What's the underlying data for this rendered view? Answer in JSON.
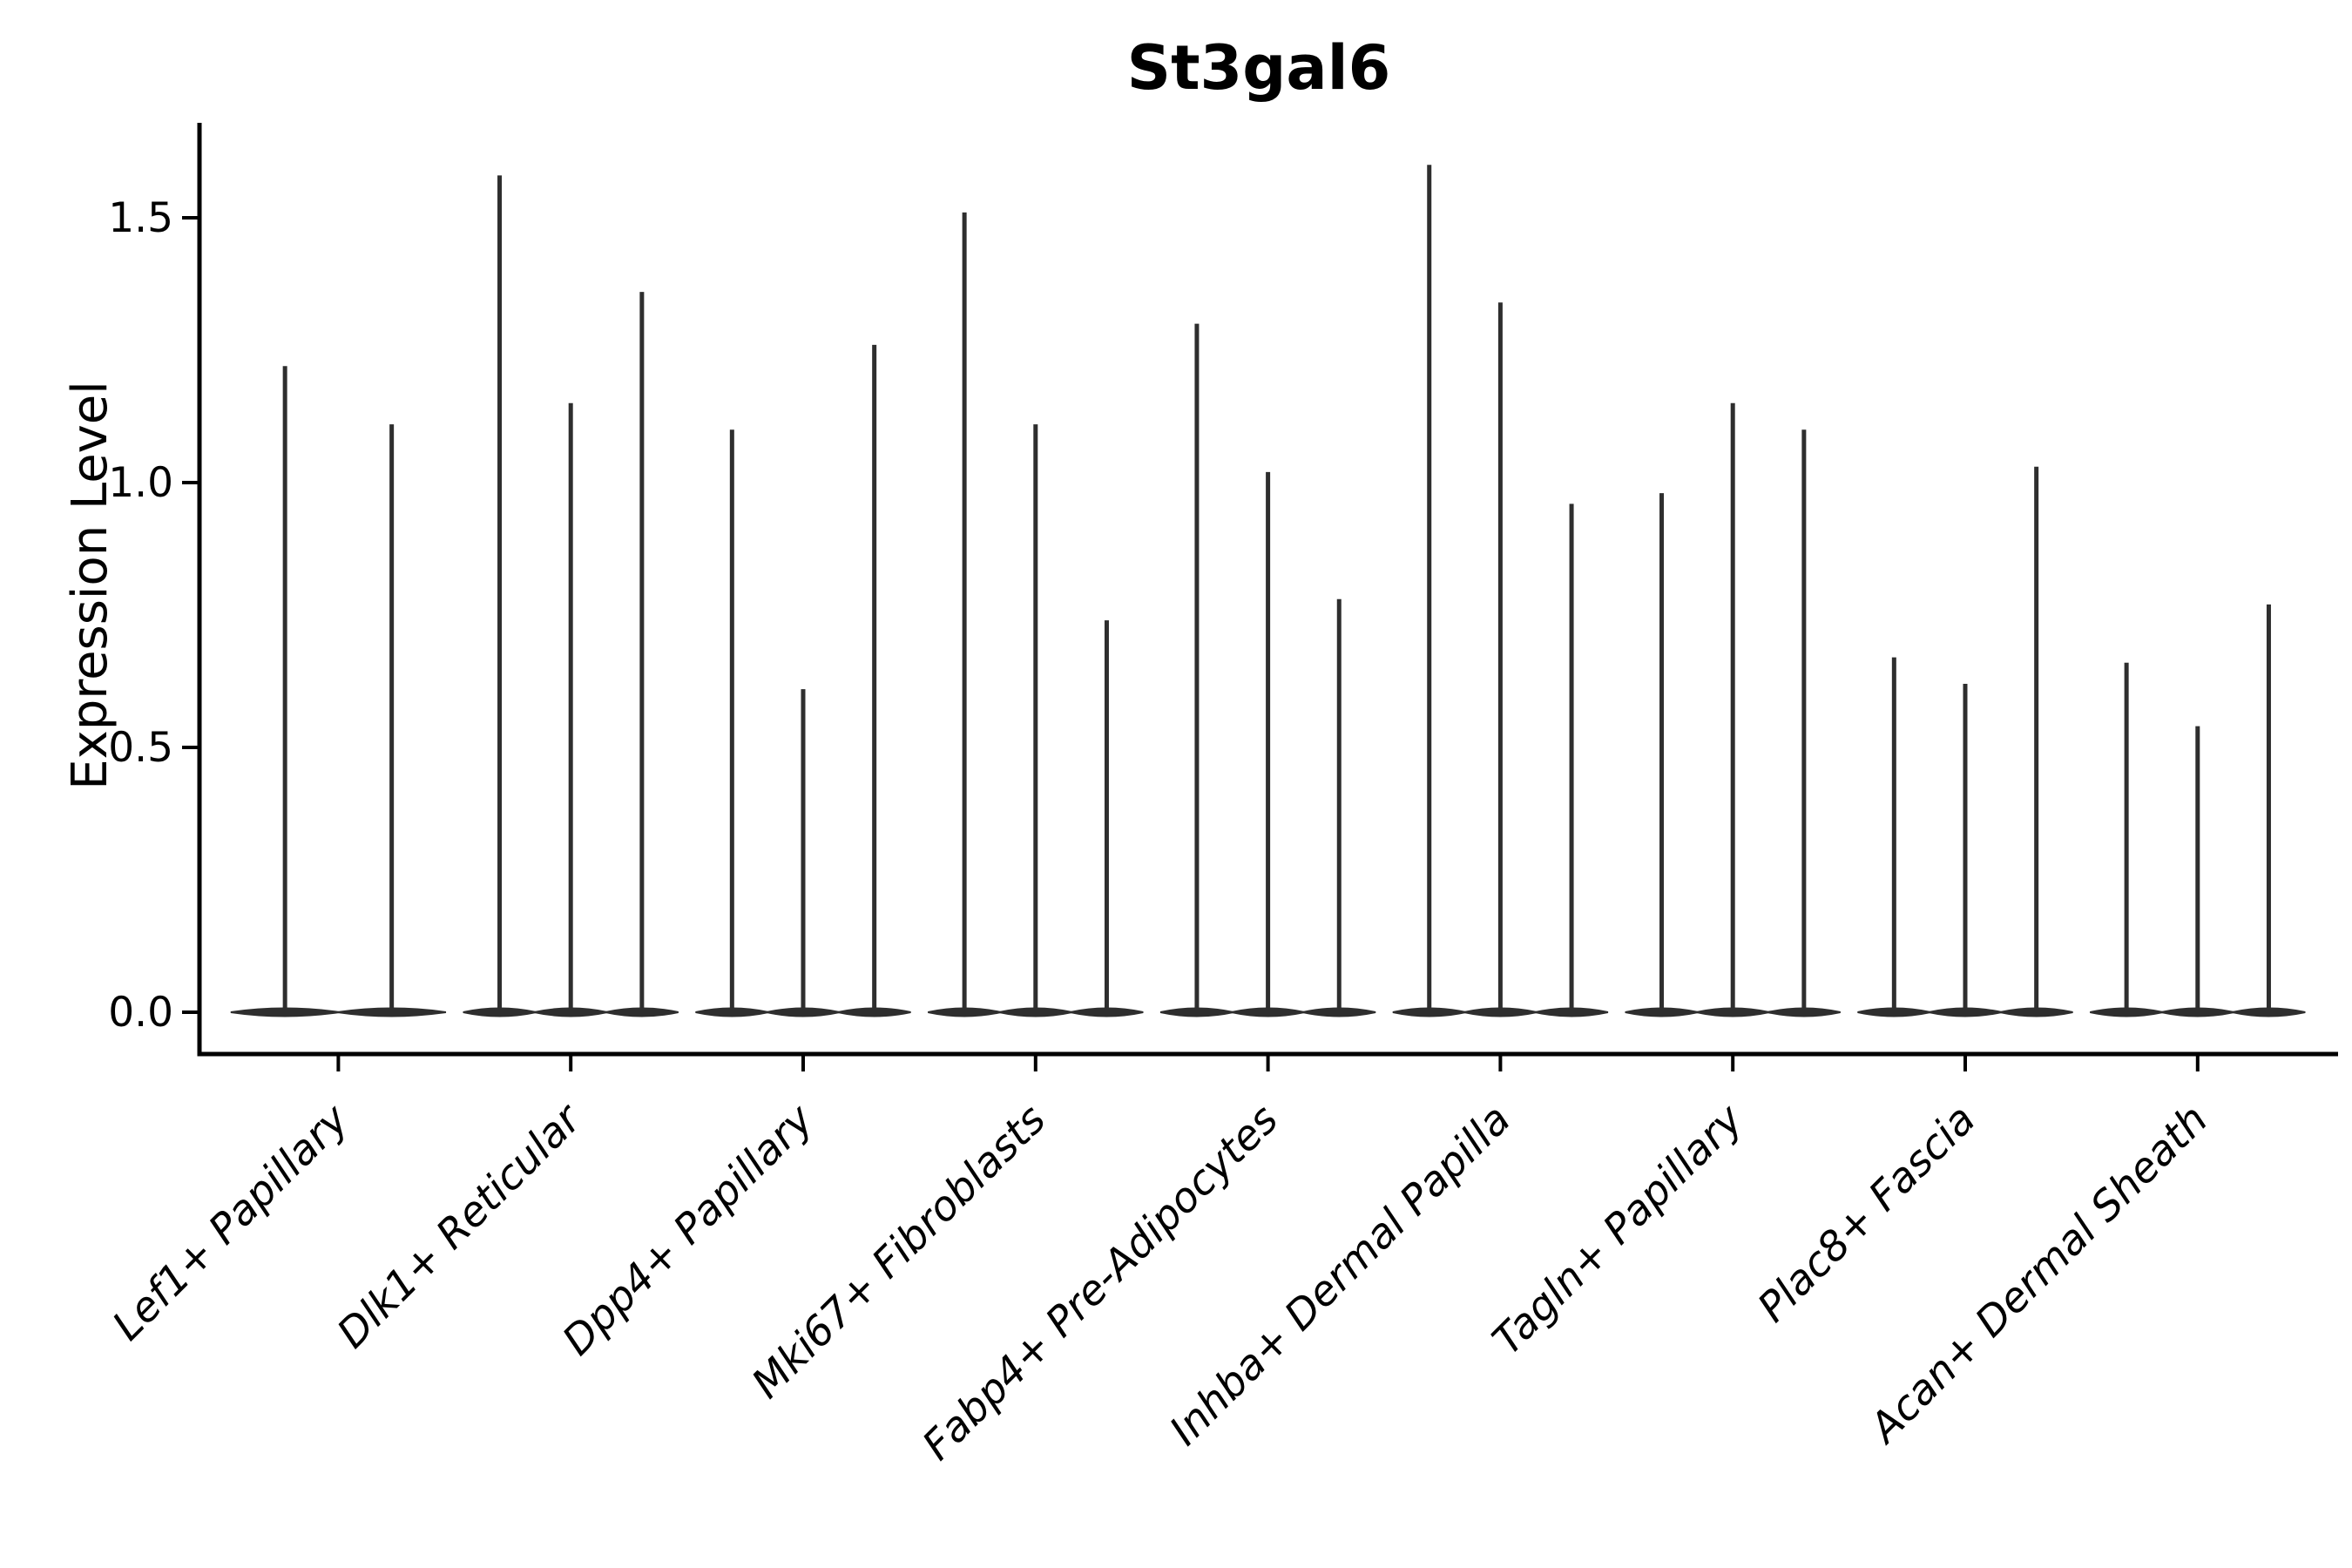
{
  "figure": {
    "background": "#ffffff"
  },
  "chart_data": {
    "type": "violin",
    "title": "St3gal6",
    "xlabel": "",
    "ylabel": "Expression Level",
    "ytick_labels": [
      "0.0",
      "0.5",
      "1.0",
      "1.5"
    ],
    "ytick_values": [
      0.0,
      0.5,
      1.0,
      1.5
    ],
    "ylim": [
      -0.08,
      1.68
    ],
    "grid": false,
    "legend": "none",
    "categories": [
      "Lef1+ Papillary",
      "Dlk1+ Reticular",
      "Dpp4+ Papillary",
      "Mki67+ Fibroblasts",
      "Fabp4+ Pre-Adipocytes",
      "Inhba+ Dermal Papilla",
      "Tagln+ Papillary",
      "Plac8+ Fascia",
      "Acan+ Dermal Sheath"
    ],
    "baseline_value": 0.0,
    "violin_max_values": [
      [
        1.22,
        1.11
      ],
      [
        1.58,
        1.15,
        1.36
      ],
      [
        1.1,
        0.61,
        1.26
      ],
      [
        1.51,
        1.11,
        0.74
      ],
      [
        1.3,
        1.02,
        0.78
      ],
      [
        1.6,
        1.34,
        0.96
      ],
      [
        0.98,
        1.15,
        1.1
      ],
      [
        0.67,
        0.62,
        1.03
      ],
      [
        0.66,
        0.54,
        0.77
      ]
    ],
    "colors": {
      "violin_fill": "#2e2e2e",
      "violin_edge": "#2e2e2e",
      "axis": "#000000",
      "text": "#000000",
      "background": "#ffffff"
    }
  }
}
